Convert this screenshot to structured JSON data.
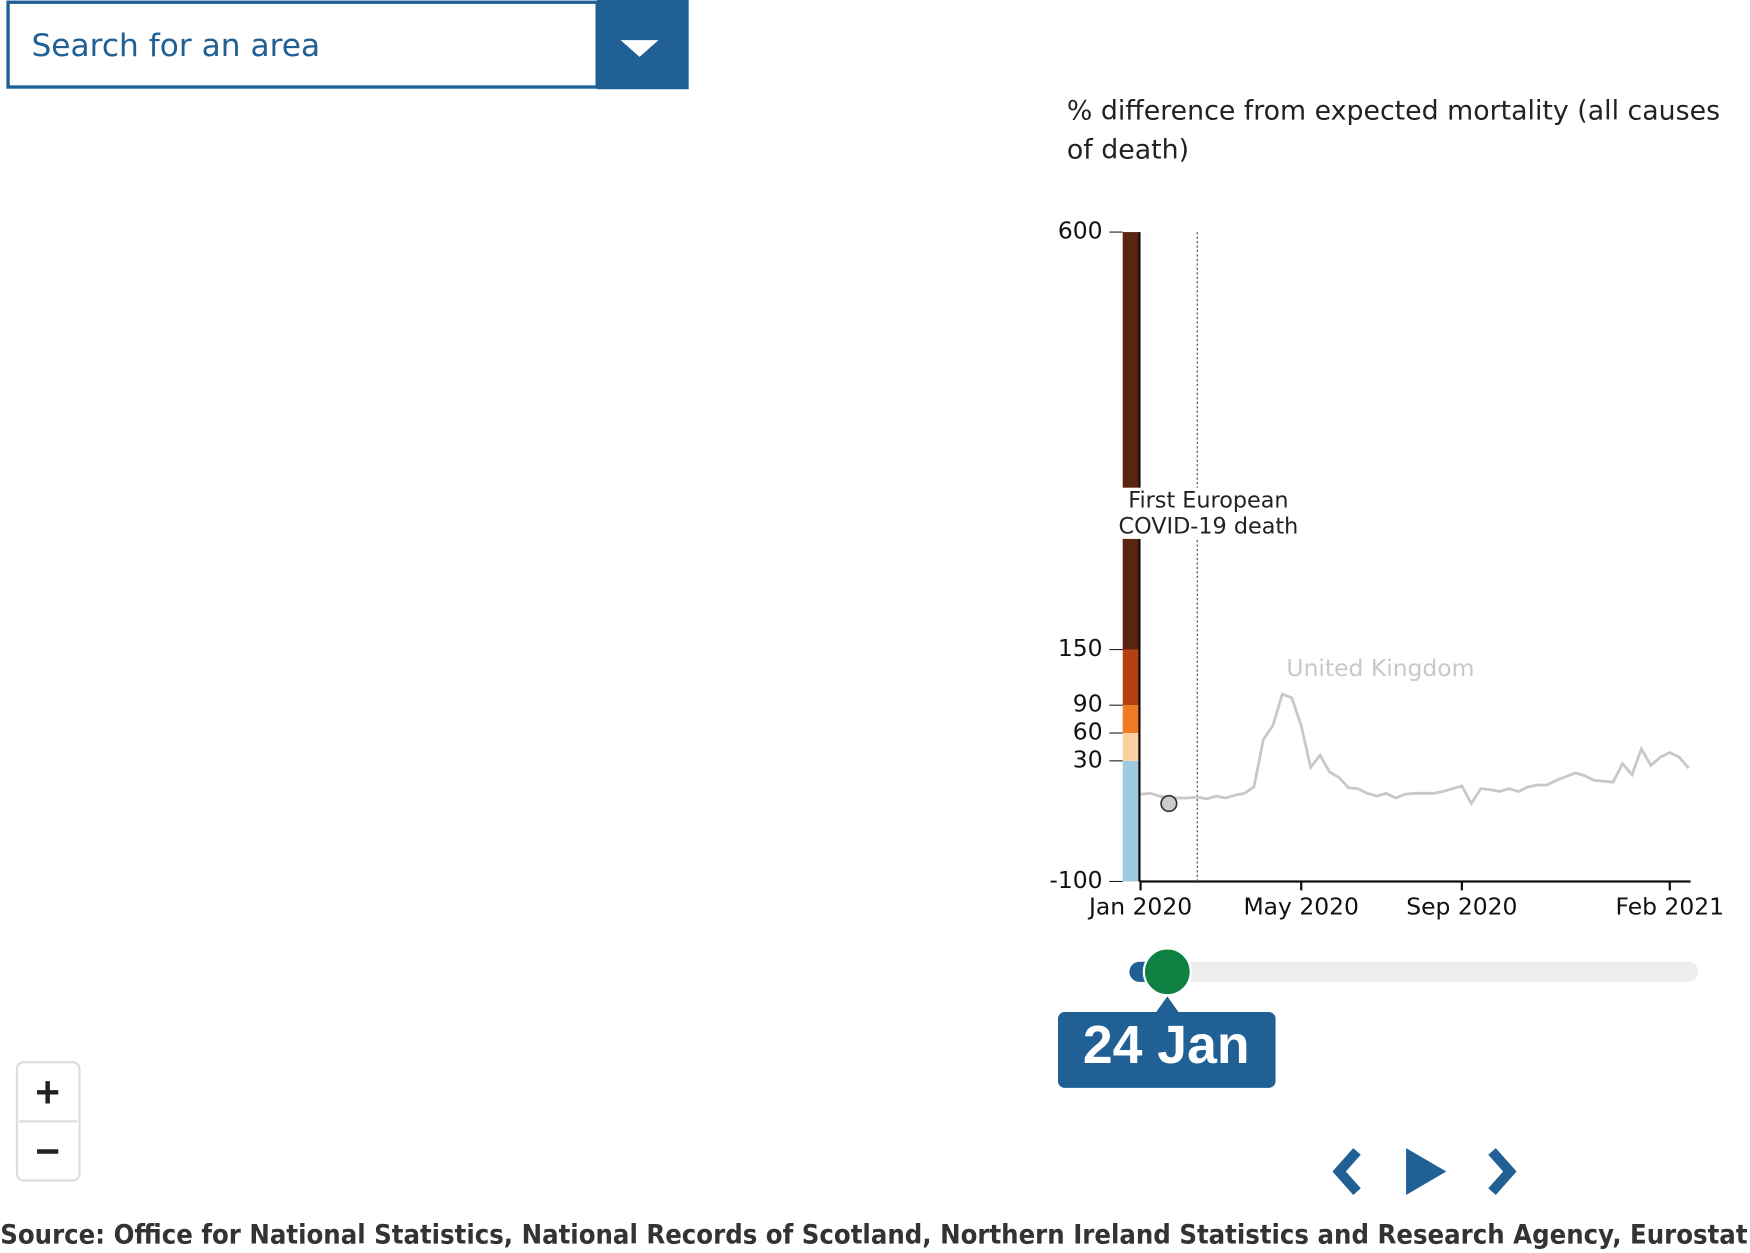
{
  "search": {
    "placeholder": "Search for an area"
  },
  "chart_data": {
    "type": "line",
    "title": "% difference from expected mortality (all causes of death)",
    "annotation": "First European COVID-19 death",
    "categories": [
      "Jan 2020",
      null,
      null,
      null,
      null,
      null,
      null,
      null,
      null,
      null,
      null,
      null,
      null,
      null,
      null,
      null,
      null,
      "May 2020",
      null,
      null,
      null,
      null,
      null,
      null,
      null,
      null,
      null,
      null,
      null,
      null,
      null,
      null,
      null,
      null,
      "Sep 2020",
      null,
      null,
      null,
      null,
      null,
      null,
      null,
      null,
      null,
      null,
      null,
      null,
      null,
      null,
      null,
      null,
      null,
      null,
      null,
      null,
      null,
      "Feb 2021",
      null,
      null
    ],
    "series": [
      {
        "name": "United Kingdom",
        "color": "#c8c8c8",
        "values": [
          -6,
          -5,
          -8,
          -10,
          -10,
          -10,
          -9,
          -11,
          -8,
          -10,
          -7,
          -5,
          2,
          53,
          68,
          102,
          98,
          68,
          23,
          36,
          18,
          12,
          1,
          0,
          -5,
          -8,
          -5,
          -10,
          -6,
          -5,
          -5,
          -5,
          -3,
          0,
          3,
          -16,
          0,
          -1,
          -3,
          0,
          -3,
          2,
          4,
          4,
          9,
          13,
          17,
          14,
          9,
          8,
          7,
          27,
          15,
          43,
          25,
          34,
          39,
          34,
          22
        ]
      }
    ],
    "ylim": [
      -100,
      600
    ],
    "yticks": [
      -100,
      30,
      60,
      90,
      150,
      600
    ],
    "band_colors": [
      "#9ecae1",
      "#fdd0a2",
      "#f07b22",
      "#b5400f",
      "#5a2410"
    ],
    "marker_value": -16,
    "marker_color": "#cccccc"
  },
  "slider": {
    "label": "24 Jan"
  },
  "source": "Source: Office for National Statistics, National Records of Scotland, Northern Ireland Statistics and Research Agency, Eurostat"
}
